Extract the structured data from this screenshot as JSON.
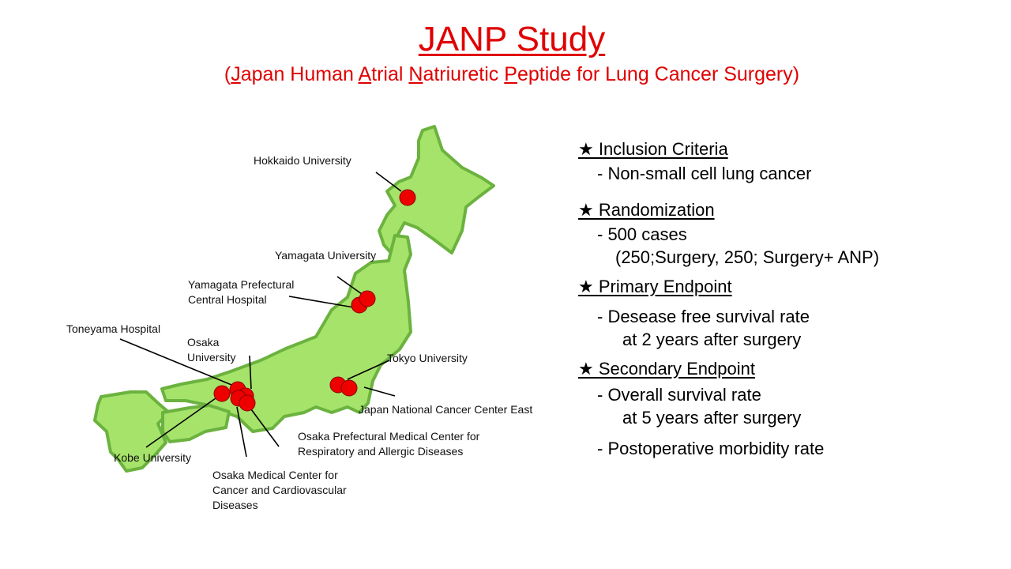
{
  "title": "JANP Study",
  "subtitle_parts": [
    "(",
    "J",
    "apan Human ",
    "A",
    "trial ",
    "N",
    "atriuretic ",
    "P",
    "eptide for Lung Cancer Surgery)"
  ],
  "colors": {
    "title": "#e00000",
    "map_fill": "#a6e36a",
    "map_outline": "#6bb23f",
    "marker": "#ee0000"
  },
  "map": {
    "sites": [
      {
        "label": "Hokkaido University"
      },
      {
        "label": "Yamagata University"
      },
      {
        "label_lines": [
          "Yamagata Prefectural",
          "Central Hospital"
        ]
      },
      {
        "label": "Toneyama Hospital"
      },
      {
        "label_lines": [
          "Osaka",
          "University"
        ]
      },
      {
        "label": "Tokyo University"
      },
      {
        "label": "Japan National Cancer Center East"
      },
      {
        "label_lines": [
          "Osaka Prefectural Medical Center for",
          "Respiratory and Allergic Diseases"
        ]
      },
      {
        "label": "Kobe University"
      },
      {
        "label_lines": [
          "Osaka Medical Center for",
          "Cancer and Cardiovascular",
          "Diseases"
        ]
      }
    ]
  },
  "sections": [
    {
      "heading": "★ Inclusion Criteria",
      "lines": [
        "-  Non-small cell lung cancer"
      ]
    },
    {
      "heading": "★ Randomization",
      "lines": [
        "-  500 cases",
        "(250;Surgery,  250; Surgery+ ANP)"
      ]
    },
    {
      "heading": "★ Primary Endpoint",
      "lines": [
        "-   Desease free survival rate",
        "at 2 years after surgery"
      ]
    },
    {
      "heading": "★ Secondary Endpoint",
      "lines": [
        "-   Overall survival rate",
        "at 5 years after surgery",
        "-  Postoperative morbidity rate"
      ]
    }
  ]
}
